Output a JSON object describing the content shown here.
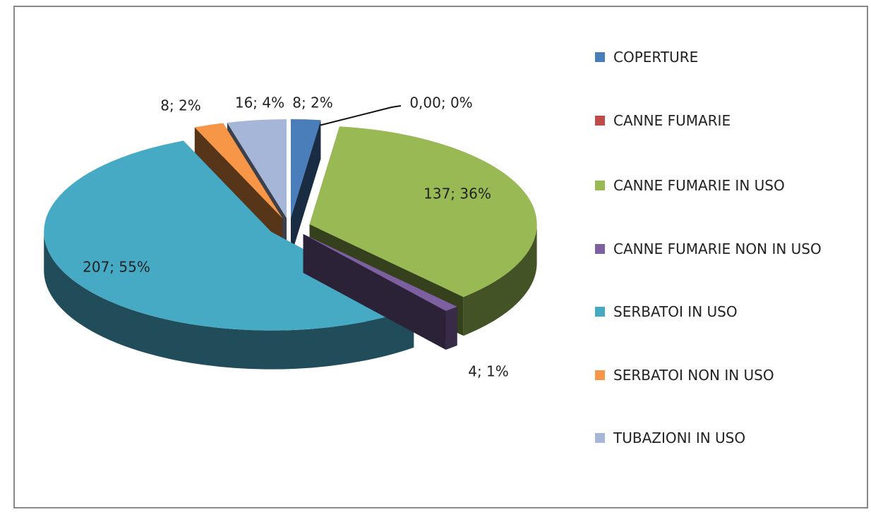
{
  "chart_data": {
    "type": "pie3d",
    "categories": [
      "COPERTURE",
      "CANNE FUMARIE",
      "CANNE FUMARIE IN USO",
      "CANNE FUMARIE NON IN USO",
      "SERBATOI IN USO",
      "SERBATOI NON IN USO",
      "TUBAZIONI IN USO"
    ],
    "values": [
      8,
      0,
      137,
      4,
      207,
      8,
      16
    ],
    "value_labels": [
      "8; 2%",
      "0,00; 0%",
      "137; 36%",
      "4; 1%",
      "207; 55%",
      "8; 2%",
      "16; 4%"
    ],
    "colors": [
      "#4a7ebb",
      "#be4b48",
      "#98b954",
      "#7d60a0",
      "#46aac5",
      "#f79646",
      "#a5b6d9"
    ],
    "legend": "right"
  }
}
